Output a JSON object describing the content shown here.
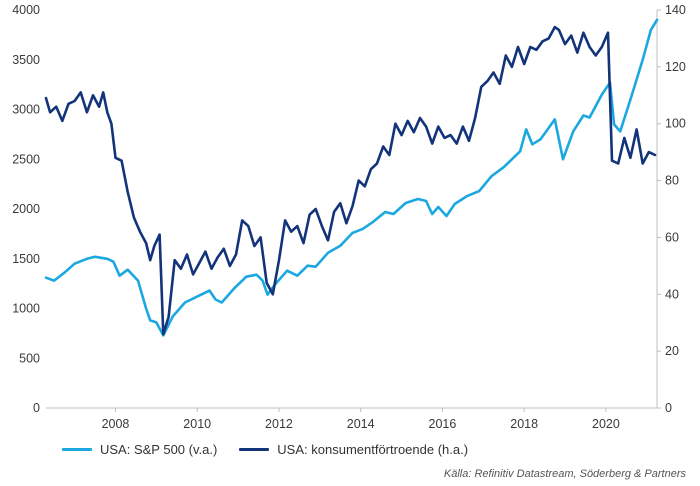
{
  "chart_data": {
    "type": "line",
    "title": "",
    "x_range": [
      2006.3,
      2021.25
    ],
    "x_ticks": [
      "2008",
      "2010",
      "2012",
      "2014",
      "2016",
      "2018",
      "2020"
    ],
    "left_axis": {
      "range": [
        0,
        4000
      ],
      "ticks": [
        "0",
        "500",
        "1000",
        "1500",
        "2000",
        "2500",
        "3000",
        "3500",
        "4000"
      ]
    },
    "right_axis": {
      "range": [
        0,
        140
      ],
      "ticks": [
        "0",
        "20",
        "40",
        "60",
        "80",
        "100",
        "120",
        "140"
      ]
    },
    "grid": false,
    "legend_position": "bottom-left",
    "series": [
      {
        "name": "USA: S&P 500 (v.a.)",
        "axis": "left",
        "color": "#1ba8e0",
        "x": [
          2006.3,
          2006.5,
          2006.75,
          2007.0,
          2007.3,
          2007.5,
          2007.8,
          2007.95,
          2008.1,
          2008.3,
          2008.55,
          2008.75,
          2008.85,
          2009.0,
          2009.17,
          2009.4,
          2009.7,
          2010.0,
          2010.3,
          2010.45,
          2010.6,
          2010.9,
          2011.2,
          2011.45,
          2011.6,
          2011.72,
          2011.9,
          2012.2,
          2012.45,
          2012.7,
          2012.9,
          2013.2,
          2013.5,
          2013.8,
          2014.05,
          2014.3,
          2014.6,
          2014.8,
          2015.1,
          2015.4,
          2015.6,
          2015.75,
          2015.9,
          2016.1,
          2016.3,
          2016.6,
          2016.9,
          2017.2,
          2017.5,
          2017.9,
          2018.05,
          2018.2,
          2018.4,
          2018.75,
          2018.95,
          2019.2,
          2019.45,
          2019.6,
          2019.9,
          2020.1,
          2020.2,
          2020.35,
          2020.6,
          2020.9,
          2021.1,
          2021.25
        ],
        "values": [
          1310,
          1280,
          1360,
          1450,
          1500,
          1520,
          1500,
          1470,
          1330,
          1390,
          1280,
          1000,
          880,
          860,
          730,
          920,
          1060,
          1120,
          1180,
          1090,
          1060,
          1200,
          1320,
          1340,
          1280,
          1140,
          1240,
          1380,
          1330,
          1430,
          1420,
          1560,
          1630,
          1760,
          1800,
          1870,
          1970,
          1950,
          2060,
          2100,
          2080,
          1950,
          2020,
          1930,
          2050,
          2130,
          2180,
          2330,
          2420,
          2580,
          2800,
          2650,
          2700,
          2900,
          2500,
          2780,
          2940,
          2920,
          3150,
          3270,
          2850,
          2780,
          3100,
          3500,
          3800,
          3900
        ]
      },
      {
        "name": "USA: konsumentförtroende (h.a.)",
        "axis": "right",
        "color": "#13337a",
        "x": [
          2006.3,
          2006.4,
          2006.55,
          2006.7,
          2006.85,
          2007.0,
          2007.15,
          2007.3,
          2007.45,
          2007.6,
          2007.7,
          2007.8,
          2007.9,
          2008.0,
          2008.15,
          2008.3,
          2008.45,
          2008.6,
          2008.75,
          2008.85,
          2008.95,
          2009.08,
          2009.17,
          2009.3,
          2009.45,
          2009.6,
          2009.75,
          2009.9,
          2010.05,
          2010.2,
          2010.35,
          2010.5,
          2010.65,
          2010.8,
          2010.95,
          2011.1,
          2011.25,
          2011.4,
          2011.55,
          2011.7,
          2011.85,
          2012.0,
          2012.15,
          2012.3,
          2012.45,
          2012.6,
          2012.75,
          2012.9,
          2013.05,
          2013.2,
          2013.35,
          2013.5,
          2013.65,
          2013.8,
          2013.95,
          2014.1,
          2014.25,
          2014.4,
          2014.55,
          2014.7,
          2014.85,
          2015.0,
          2015.15,
          2015.3,
          2015.45,
          2015.6,
          2015.75,
          2015.9,
          2016.05,
          2016.2,
          2016.35,
          2016.5,
          2016.65,
          2016.8,
          2016.95,
          2017.1,
          2017.25,
          2017.4,
          2017.55,
          2017.7,
          2017.85,
          2018.0,
          2018.15,
          2018.3,
          2018.45,
          2018.6,
          2018.75,
          2018.85,
          2019.0,
          2019.15,
          2019.3,
          2019.45,
          2019.6,
          2019.75,
          2019.9,
          2020.05,
          2020.15,
          2020.3,
          2020.45,
          2020.6,
          2020.75,
          2020.9,
          2021.05,
          2021.2
        ],
        "values": [
          109,
          104,
          106,
          101,
          107,
          108,
          111,
          104,
          110,
          106,
          111,
          104,
          100,
          88,
          87,
          76,
          67,
          62,
          58,
          52,
          57,
          61,
          26,
          32,
          52,
          49,
          54,
          47,
          51,
          55,
          49,
          53,
          56,
          50,
          54,
          66,
          64,
          57,
          60,
          44,
          40,
          52,
          66,
          62,
          64,
          58,
          68,
          70,
          64,
          59,
          69,
          72,
          65,
          71,
          80,
          78,
          84,
          86,
          92,
          89,
          100,
          96,
          101,
          97,
          102,
          99,
          93,
          99,
          95,
          96,
          93,
          99,
          94,
          102,
          113,
          115,
          118,
          114,
          124,
          120,
          127,
          121,
          127,
          126,
          129,
          130,
          134,
          133,
          128,
          131,
          125,
          132,
          127,
          124,
          127,
          132,
          87,
          86,
          95,
          88,
          98,
          86,
          90,
          89
        ]
      }
    ],
    "source": "Källa: Refinitiv Datastream, Söderberg & Partners"
  },
  "legend": {
    "item1": "USA: S&P 500 (v.a.)",
    "item2": "USA: konsumentförtroende (h.a.)"
  },
  "source_label": "Källa: Refinitiv Datastream, Söderberg & Partners"
}
